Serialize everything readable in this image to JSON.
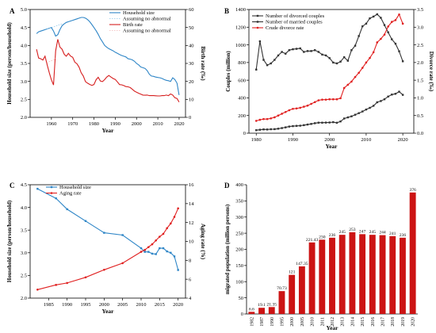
{
  "chart_data": [
    {
      "panel": "A",
      "type": "line",
      "xlabel": "Year",
      "ylabel": "Household size (person/household)",
      "y2label": "Birth rate (‰)",
      "xlim": [
        1950,
        2023
      ],
      "ylim": [
        2.0,
        5.0
      ],
      "y2lim": [
        0,
        60
      ],
      "xticks": [
        1960,
        1970,
        1980,
        1990,
        2000,
        2010,
        2020
      ],
      "yticks": [
        2.0,
        2.5,
        3.0,
        3.5,
        4.0,
        4.5,
        5.0
      ],
      "y2ticks": [
        0,
        10,
        20,
        30,
        40,
        50,
        60
      ],
      "legend_position": "top-right",
      "series": [
        {
          "name": "Household size",
          "axis": "left",
          "color": "#2f86c7",
          "marker": "none",
          "x": [
            1953,
            1954,
            1955,
            1956,
            1957,
            1958,
            1959,
            1960,
            1961,
            1962,
            1963,
            1964,
            1965,
            1966,
            1967,
            1968,
            1969,
            1970,
            1971,
            1972,
            1973,
            1974,
            1975,
            1976,
            1977,
            1978,
            1979,
            1980,
            1981,
            1982,
            1983,
            1984,
            1985,
            1986,
            1987,
            1988,
            1989,
            1990,
            1991,
            1992,
            1993,
            1994,
            1995,
            1996,
            1997,
            1998,
            1999,
            2000,
            2001,
            2002,
            2003,
            2004,
            2005,
            2006,
            2007,
            2008,
            2009,
            2010,
            2011,
            2012,
            2013,
            2014,
            2015,
            2016,
            2017,
            2018,
            2019,
            2020
          ],
          "y": [
            4.33,
            4.38,
            4.4,
            4.42,
            4.44,
            4.46,
            4.48,
            4.5,
            4.4,
            4.26,
            4.3,
            4.44,
            4.55,
            4.6,
            4.64,
            4.66,
            4.68,
            4.7,
            4.72,
            4.74,
            4.76,
            4.78,
            4.78,
            4.76,
            4.72,
            4.66,
            4.58,
            4.5,
            4.41,
            4.31,
            4.19,
            4.1,
            4.0,
            3.95,
            3.91,
            3.88,
            3.85,
            3.81,
            3.78,
            3.75,
            3.72,
            3.7,
            3.68,
            3.63,
            3.62,
            3.6,
            3.56,
            3.5,
            3.46,
            3.4,
            3.38,
            3.36,
            3.3,
            3.2,
            3.15,
            3.14,
            3.12,
            3.11,
            3.1,
            3.08,
            3.05,
            3.03,
            3.02,
            3.0,
            3.1,
            3.05,
            2.95,
            2.62
          ]
        },
        {
          "name": "Assuming no abnormal",
          "axis": "left",
          "color": "#8fc7ea",
          "marker": "none",
          "dash": true,
          "x": [
            1958,
            1959,
            1960,
            1961,
            1962,
            1963,
            1964,
            1965
          ],
          "y": [
            4.46,
            4.48,
            4.5,
            4.52,
            4.54,
            4.56,
            4.58,
            4.6
          ]
        },
        {
          "name": "Birth rate",
          "axis": "right",
          "color": "#d61e1e",
          "marker": "none",
          "x": [
            1953,
            1954,
            1955,
            1956,
            1957,
            1958,
            1959,
            1960,
            1961,
            1962,
            1963,
            1964,
            1965,
            1966,
            1967,
            1968,
            1969,
            1970,
            1971,
            1972,
            1973,
            1974,
            1975,
            1976,
            1977,
            1978,
            1979,
            1980,
            1981,
            1982,
            1983,
            1984,
            1985,
            1986,
            1987,
            1988,
            1989,
            1990,
            1991,
            1992,
            1993,
            1994,
            1995,
            1996,
            1997,
            1998,
            1999,
            2000,
            2001,
            2002,
            2003,
            2004,
            2005,
            2006,
            2007,
            2008,
            2009,
            2010,
            2011,
            2012,
            2013,
            2014,
            2015,
            2016,
            2017,
            2018,
            2019,
            2020
          ],
          "y": [
            37.9,
            33.0,
            32.6,
            31.9,
            34.0,
            29.2,
            24.8,
            20.9,
            18.0,
            37.0,
            43.4,
            39.1,
            37.9,
            35.1,
            34.0,
            35.6,
            34.1,
            33.4,
            30.7,
            29.8,
            27.9,
            24.8,
            23.0,
            19.9,
            19.0,
            18.3,
            17.8,
            18.2,
            20.9,
            22.3,
            20.2,
            19.9,
            21.0,
            22.4,
            23.3,
            22.4,
            21.6,
            21.1,
            19.7,
            18.2,
            18.1,
            17.7,
            17.1,
            17.0,
            16.6,
            15.6,
            14.6,
            14.0,
            13.4,
            12.9,
            12.4,
            12.3,
            12.4,
            12.1,
            12.1,
            12.1,
            12.0,
            11.9,
            11.9,
            12.1,
            12.1,
            12.4,
            12.1,
            13.0,
            12.4,
            10.9,
            10.5,
            8.5
          ]
        },
        {
          "name": "Assuming no abnormal",
          "axis": "right",
          "color": "#f4b6b6",
          "marker": "none",
          "dash": true,
          "x": [
            1958,
            1959,
            1960,
            1961,
            1962
          ],
          "y": [
            30,
            31,
            31.5,
            32,
            33
          ]
        }
      ]
    },
    {
      "panel": "B",
      "type": "line",
      "xlabel": "Year",
      "ylabel": "Couples (million)",
      "y2label": "Divorce rate (‰)",
      "xlim": [
        1978,
        2023
      ],
      "ylim": [
        0,
        1400
      ],
      "y2lim": [
        0,
        3.5
      ],
      "xticks": [
        1980,
        1990,
        2000,
        2010,
        2020
      ],
      "yticks": [
        0,
        200,
        400,
        600,
        800,
        1000,
        1200,
        1400
      ],
      "y2ticks": [
        0.0,
        0.5,
        1.0,
        1.5,
        2.0,
        2.5,
        3.0,
        3.5
      ],
      "legend_position": "top-left",
      "series": [
        {
          "name": "Number of divorced couples",
          "axis": "left",
          "color": "#333333",
          "marker": "square",
          "x": [
            1980,
            1981,
            1982,
            1983,
            1984,
            1985,
            1986,
            1987,
            1988,
            1989,
            1990,
            1991,
            1992,
            1993,
            1994,
            1995,
            1996,
            1997,
            1998,
            1999,
            2000,
            2001,
            2002,
            2003,
            2004,
            2005,
            2006,
            2007,
            2008,
            2009,
            2010,
            2011,
            2012,
            2013,
            2014,
            2015,
            2016,
            2017,
            2018,
            2019,
            2020
          ],
          "y": [
            34,
            39,
            43,
            42,
            45,
            46,
            51,
            58,
            66,
            75,
            80,
            83,
            85,
            91,
            98,
            105,
            113,
            119,
            119,
            120,
            121,
            125,
            118,
            133,
            166,
            179,
            191,
            209,
            227,
            246,
            268,
            287,
            310,
            350,
            364,
            384,
            415,
            437,
            446,
            470,
            434
          ]
        },
        {
          "name": "Number of married couples",
          "axis": "left",
          "color": "#333333",
          "marker": "square",
          "x": [
            1980,
            1981,
            1982,
            1983,
            1984,
            1985,
            1986,
            1987,
            1988,
            1989,
            1990,
            1991,
            1992,
            1993,
            1994,
            1995,
            1996,
            1997,
            1998,
            1999,
            2000,
            2001,
            2002,
            2003,
            2004,
            2005,
            2006,
            2007,
            2008,
            2009,
            2010,
            2011,
            2012,
            2013,
            2014,
            2015,
            2016,
            2017,
            2018,
            2019,
            2020
          ],
          "y": [
            720,
            1040,
            830,
            770,
            790,
            830,
            880,
            920,
            900,
            940,
            950,
            955,
            960,
            920,
            930,
            930,
            940,
            920,
            890,
            880,
            850,
            800,
            790,
            810,
            860,
            820,
            940,
            990,
            1100,
            1210,
            1240,
            1300,
            1320,
            1346,
            1306,
            1224,
            1142,
            1063,
            1013,
            927,
            814
          ]
        },
        {
          "name": "Crude divorce rate",
          "axis": "right",
          "color": "#e02020",
          "marker": "circle",
          "x": [
            1980,
            1981,
            1982,
            1983,
            1984,
            1985,
            1986,
            1987,
            1988,
            1989,
            1990,
            1991,
            1992,
            1993,
            1994,
            1995,
            1996,
            1997,
            1998,
            1999,
            2000,
            2001,
            2002,
            2003,
            2004,
            2005,
            2006,
            2007,
            2008,
            2009,
            2010,
            2011,
            2012,
            2013,
            2014,
            2015,
            2016,
            2017,
            2018,
            2019,
            2020
          ],
          "y": [
            0.35,
            0.38,
            0.4,
            0.4,
            0.42,
            0.45,
            0.5,
            0.55,
            0.6,
            0.65,
            0.69,
            0.7,
            0.72,
            0.75,
            0.78,
            0.83,
            0.88,
            0.93,
            0.95,
            0.95,
            0.96,
            0.96,
            0.96,
            0.99,
            1.28,
            1.37,
            1.46,
            1.59,
            1.71,
            1.85,
            2.0,
            2.13,
            2.29,
            2.57,
            2.67,
            2.79,
            3.02,
            3.15,
            3.2,
            3.36,
            3.1
          ]
        }
      ]
    },
    {
      "panel": "C",
      "type": "line",
      "xlabel": "Year",
      "ylabel": "Household size (person/household)",
      "y2label": "Aging rate (%)",
      "xlim": [
        1980,
        2022
      ],
      "ylim": [
        2.0,
        4.5
      ],
      "y2lim": [
        4,
        16
      ],
      "xticks": [
        1985,
        1990,
        1995,
        2000,
        2005,
        2010,
        2015,
        2020
      ],
      "yticks": [
        2.0,
        2.5,
        3.0,
        3.5,
        4.0,
        4.5
      ],
      "y2ticks": [
        4,
        6,
        8,
        10,
        12,
        14,
        16
      ],
      "legend_position": "top-left",
      "series": [
        {
          "name": "Household size",
          "axis": "left",
          "color": "#2f86c7",
          "marker": "square",
          "x": [
            1982,
            1987,
            1990,
            1995,
            2000,
            2005,
            2010,
            2011,
            2012,
            2013,
            2014,
            2015,
            2016,
            2017,
            2018,
            2019,
            2020
          ],
          "y": [
            4.41,
            4.2,
            3.96,
            3.7,
            3.44,
            3.39,
            3.1,
            3.02,
            3.02,
            2.98,
            2.97,
            3.1,
            3.1,
            3.03,
            3.0,
            2.92,
            2.62
          ]
        },
        {
          "name": "Aging rate",
          "axis": "right",
          "color": "#e02020",
          "marker": "circle",
          "x": [
            1982,
            1987,
            1990,
            1995,
            2000,
            2005,
            2010,
            2011,
            2012,
            2013,
            2014,
            2015,
            2016,
            2017,
            2018,
            2019,
            2020
          ],
          "y": [
            4.9,
            5.4,
            5.6,
            6.2,
            7.0,
            7.7,
            8.9,
            9.1,
            9.4,
            9.7,
            10.1,
            10.5,
            10.8,
            11.4,
            11.9,
            12.6,
            13.5
          ]
        }
      ]
    },
    {
      "panel": "D",
      "type": "bar",
      "xlabel": "Year",
      "ylabel": "migrated population (million persons)",
      "categories": [
        "1982",
        "1987",
        "1990",
        "1995",
        "2000",
        "2005",
        "2010",
        "2011",
        "2012",
        "2013",
        "2014",
        "2015",
        "2016",
        "2017",
        "2018",
        "2019",
        "2020"
      ],
      "values": [
        6.6,
        19.1,
        21.35,
        70.73,
        121,
        147.35,
        221.43,
        230,
        236,
        245,
        253,
        247,
        245,
        244,
        241,
        236,
        376
      ],
      "value_labels": [
        "6.6",
        "19.1",
        "21.35",
        "70.73",
        "121",
        "147.35",
        "221.43",
        "230",
        "236",
        "245",
        "253",
        "247",
        "245",
        "244",
        "241",
        "236",
        "376"
      ],
      "ylim": [
        0,
        400
      ],
      "yticks": [
        0,
        50,
        100,
        150,
        200,
        250,
        300,
        350,
        400
      ],
      "bar_color": "#cc1414"
    }
  ]
}
